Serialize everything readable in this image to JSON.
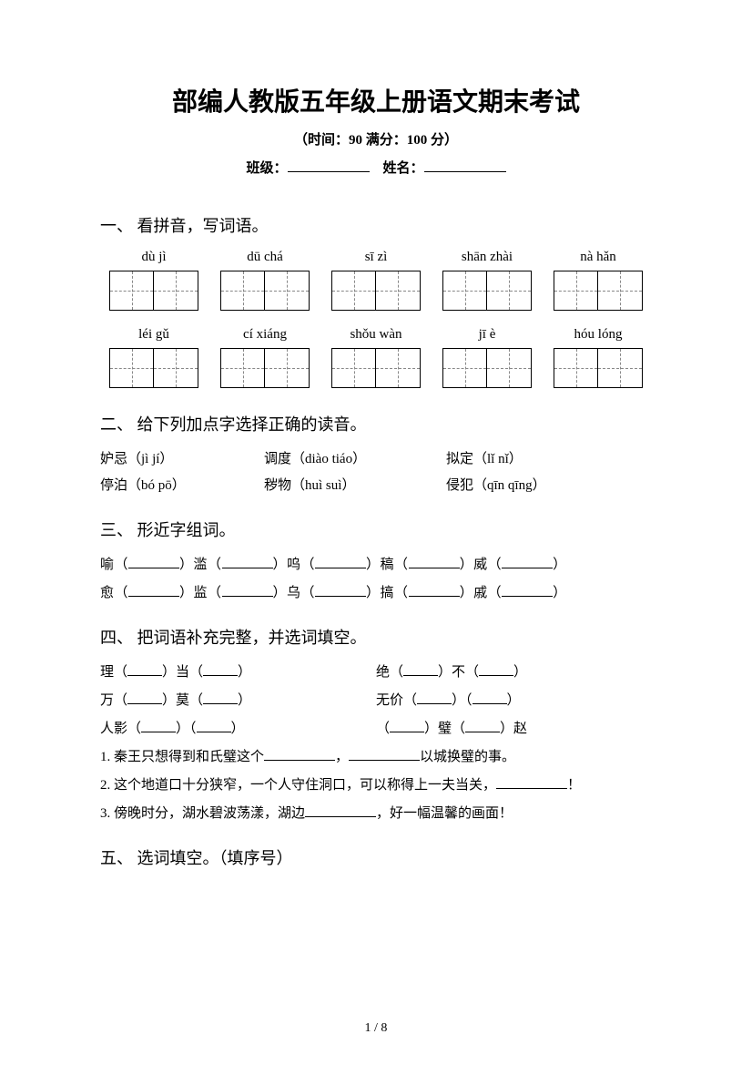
{
  "title": "部编人教版五年级上册语文期末考试",
  "subtitle": "（时间：90   满分：100 分）",
  "info": {
    "class_label": "班级：",
    "name_label": "姓名："
  },
  "sections": {
    "s1": "一、 看拼音，写词语。",
    "s2": "二、 给下列加点字选择正确的读音。",
    "s3": "三、 形近字组词。",
    "s4": "四、 把词语补充完整，并选词填空。",
    "s5": "五、 选词填空。（填序号）"
  },
  "pinyin_row1": [
    "dù jì",
    "dū chá",
    "sī zì",
    "shān zhài",
    "nà hǎn"
  ],
  "pinyin_row2": [
    "léi gǔ",
    "cí xiáng",
    "shǒu wàn",
    "jī è",
    "hóu lóng"
  ],
  "q2": {
    "r1": {
      "a_char": "妒",
      "a_word": "忌（jì jí）",
      "b_char": "调",
      "b_word": "度（diào tiáo）",
      "c_char": "拟",
      "c_word": "定（lǐ nǐ）"
    },
    "r2": {
      "a_word": "停",
      "a_char": "泊",
      "a_py": "（bó pō）",
      "b_char": "秽",
      "b_word": "物（huì suì）",
      "c_char": "侵",
      "c_word": "犯（qīn qīng）"
    }
  },
  "q3": {
    "line1": {
      "a": "喻（",
      "b": "）滥（",
      "c": "）呜（",
      "d": "）稿（",
      "e": "）威（",
      "f": "）"
    },
    "line2": {
      "a": "愈（",
      "b": "）监（",
      "c": "）乌（",
      "d": "）搞（",
      "e": "）戚（",
      "f": "）"
    }
  },
  "q4": {
    "r1a": "理（",
    "r1b": "）当（",
    "r1c": "）",
    "r1d": "绝（",
    "r1e": "）不（",
    "r1f": "）",
    "r2a": "万（",
    "r2b": "）莫（",
    "r2c": "）",
    "r2d": "无价（",
    "r2e": "）（",
    "r2f": "）",
    "r3a": "人影（",
    "r3b": "）（",
    "r3c": "）",
    "r3d": "（",
    "r3e": "）璧（",
    "r3f": "）赵",
    "s1a": "1. 秦王只想得到和氏璧这个",
    "s1b": "，",
    "s1c": "以城换璧的事。",
    "s2a": "2. 这个地道口十分狭窄，一个人守住洞口，可以称得上一夫当关，",
    "s2b": "！",
    "s3a": "3. 傍晚时分，湖水碧波荡漾，湖边",
    "s3b": "，好一幅温馨的画面！"
  },
  "page": "1 / 8"
}
